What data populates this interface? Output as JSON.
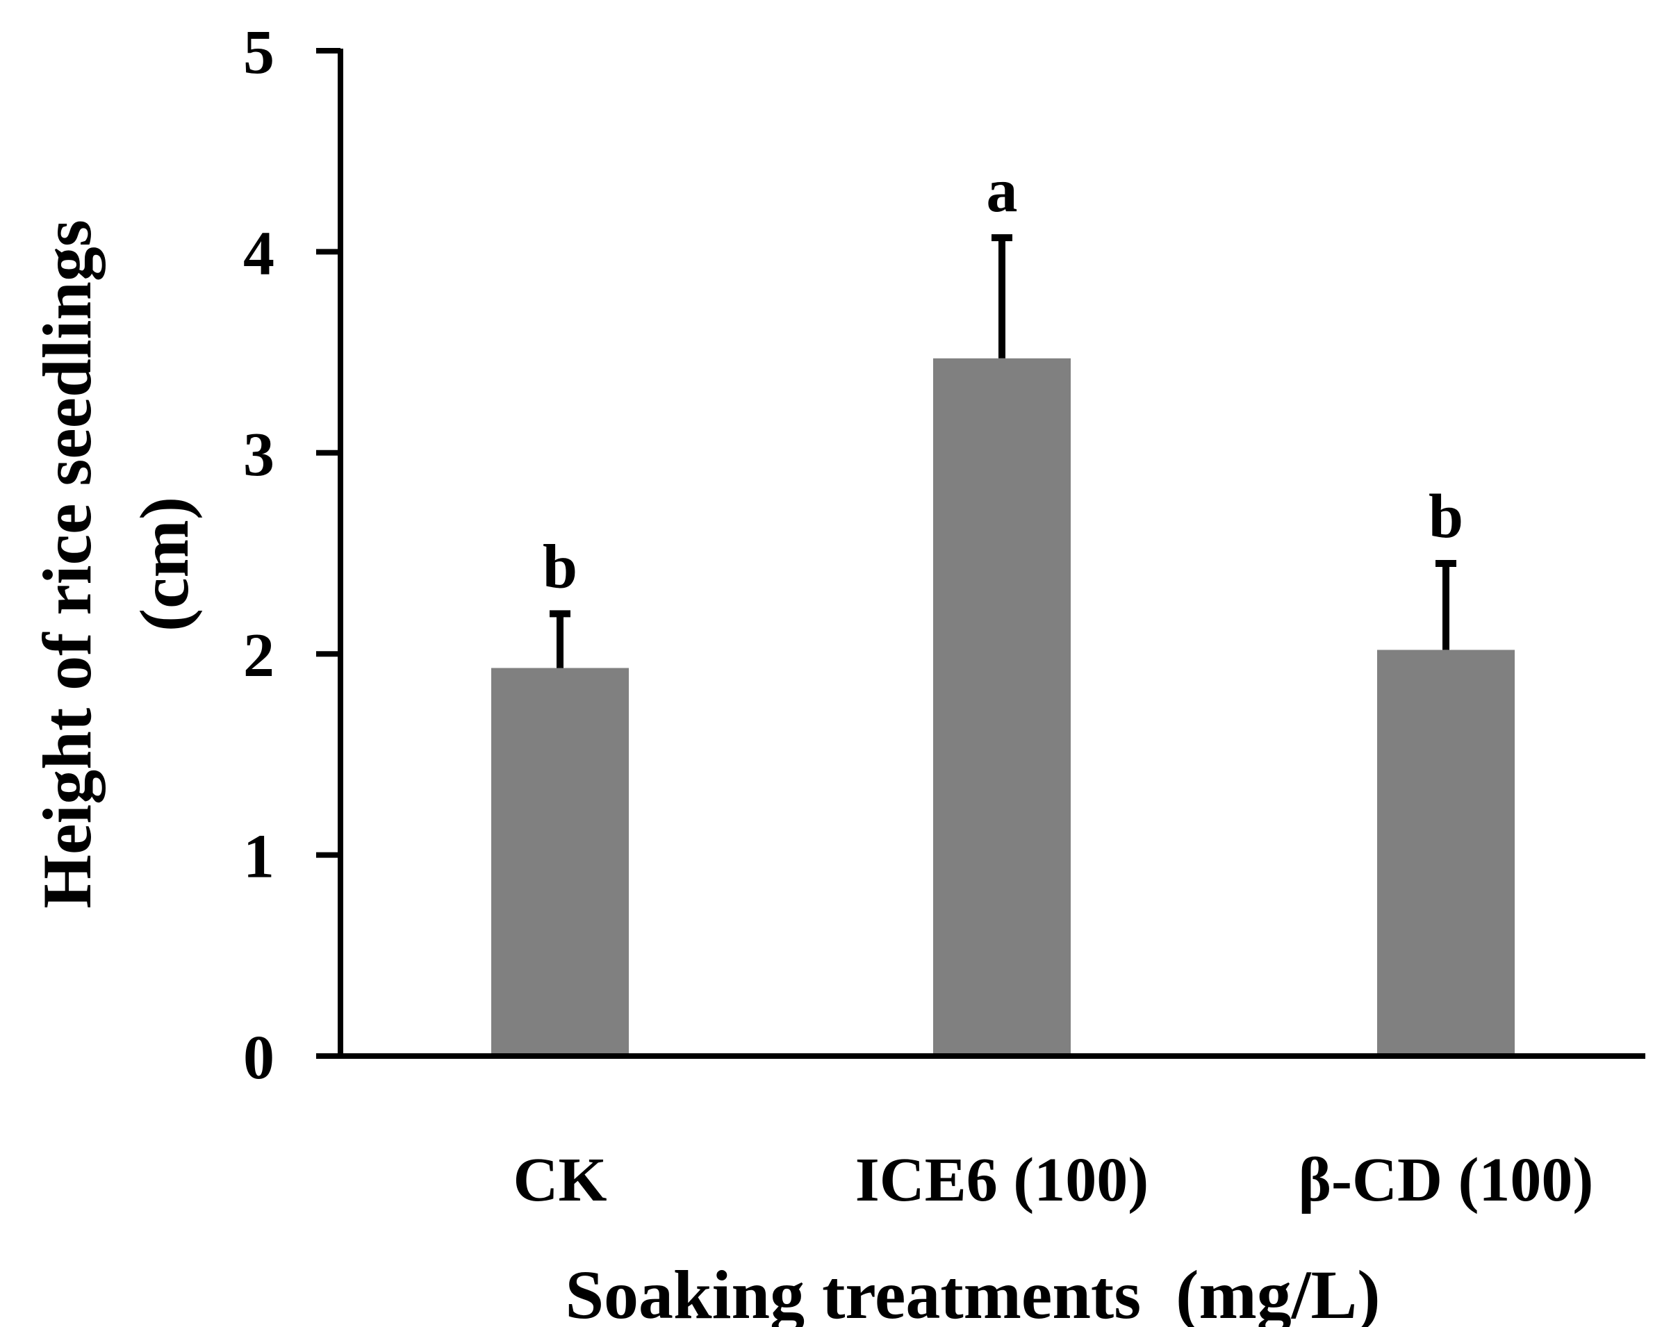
{
  "chart_data": {
    "type": "bar",
    "title": "",
    "xlabel": "Soaking treatments  (mg/L)",
    "ylabel_lines": [
      "Height of rice seedlings",
      "(cm)"
    ],
    "categories": [
      "CK",
      "ICE6 (100)",
      "β-CD (100)"
    ],
    "series": [
      {
        "name": "Height of rice seedlings",
        "values": [
          1.93,
          3.47,
          2.02
        ],
        "error_plus": [
          0.27,
          0.6,
          0.43
        ],
        "significance": [
          "b",
          "a",
          "b"
        ]
      }
    ],
    "ylim": [
      0,
      5
    ],
    "yticks": [
      "0",
      "1",
      "2",
      "3",
      "4",
      "5"
    ],
    "grid": false,
    "legend": "none",
    "colors": {
      "bar": "#808080",
      "axis": "#000000",
      "error_bar": "#000000",
      "text": "#000000",
      "background": "#ffffff"
    }
  }
}
